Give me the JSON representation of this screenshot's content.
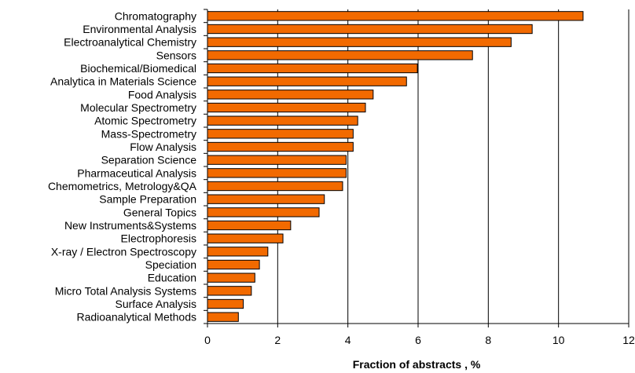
{
  "chart_data": {
    "type": "bar",
    "orientation": "horizontal",
    "title": "",
    "xlabel": "Fraction of abstracts , %",
    "ylabel": "",
    "xlim": [
      0,
      12
    ],
    "xticks": [
      0,
      2,
      4,
      6,
      8,
      10,
      12
    ],
    "grid": "vertical",
    "bar_color": "#f26a00",
    "bar_edge_color": "#000000",
    "categories": [
      "Chromatography",
      "Environmental Analysis",
      "Electroanalytical Chemistry",
      "Sensors",
      "Biochemical/Biomedical",
      "Analytica in Materials Science",
      "Food Analysis",
      "Molecular Spectrometry",
      "Atomic Spectrometry",
      "Mass-Spectrometry",
      "Flow Analysis",
      "Separation Science",
      "Pharmaceutical Analysis",
      "Chemometrics, Metrology&QA",
      "Sample Preparation",
      "General Topics",
      "New Instruments&Systems",
      "Electrophoresis",
      "X-ray / Electron Spectroscopy",
      "Speciation",
      "Education",
      "Micro Total Analysis Systems",
      "Surface Analysis",
      "Radioanalytical Methods"
    ],
    "values": [
      10.7,
      9.25,
      8.65,
      7.55,
      5.98,
      5.67,
      4.72,
      4.5,
      4.28,
      4.15,
      4.15,
      3.95,
      3.95,
      3.85,
      3.33,
      3.18,
      2.37,
      2.15,
      1.72,
      1.48,
      1.35,
      1.25,
      1.02,
      0.88
    ]
  }
}
